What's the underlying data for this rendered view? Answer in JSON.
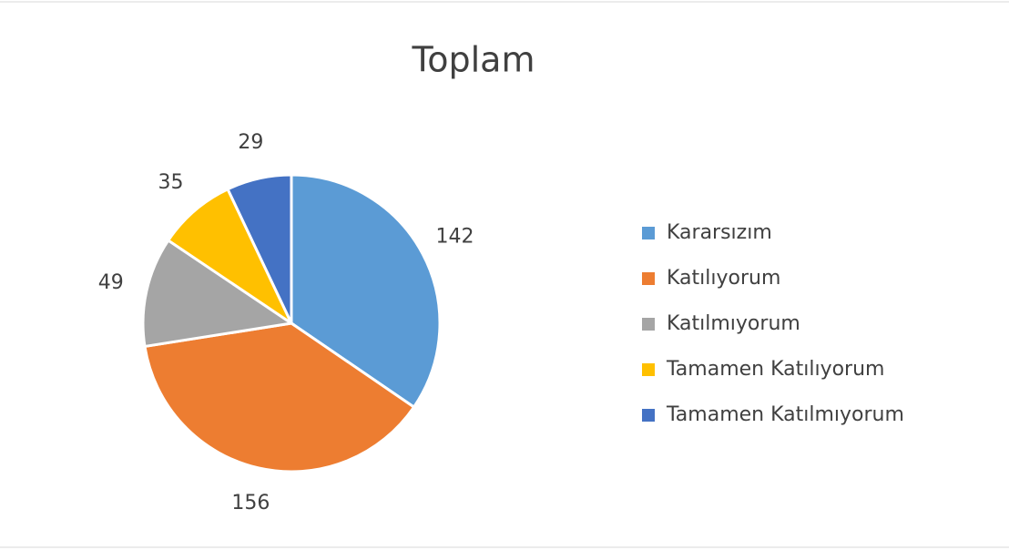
{
  "chart_data": {
    "type": "pie",
    "title": "Toplam",
    "categories": [
      "Kararsızım",
      "Katılıyorum",
      "Katılmıyorum",
      "Tamamen Katılıyorum",
      "Tamamen Katılmıyorum"
    ],
    "values": [
      142,
      156,
      49,
      35,
      29
    ],
    "colors": [
      "#5b9bd5",
      "#ed7d31",
      "#a5a5a5",
      "#ffc000",
      "#4472c4"
    ],
    "legend": "right"
  }
}
